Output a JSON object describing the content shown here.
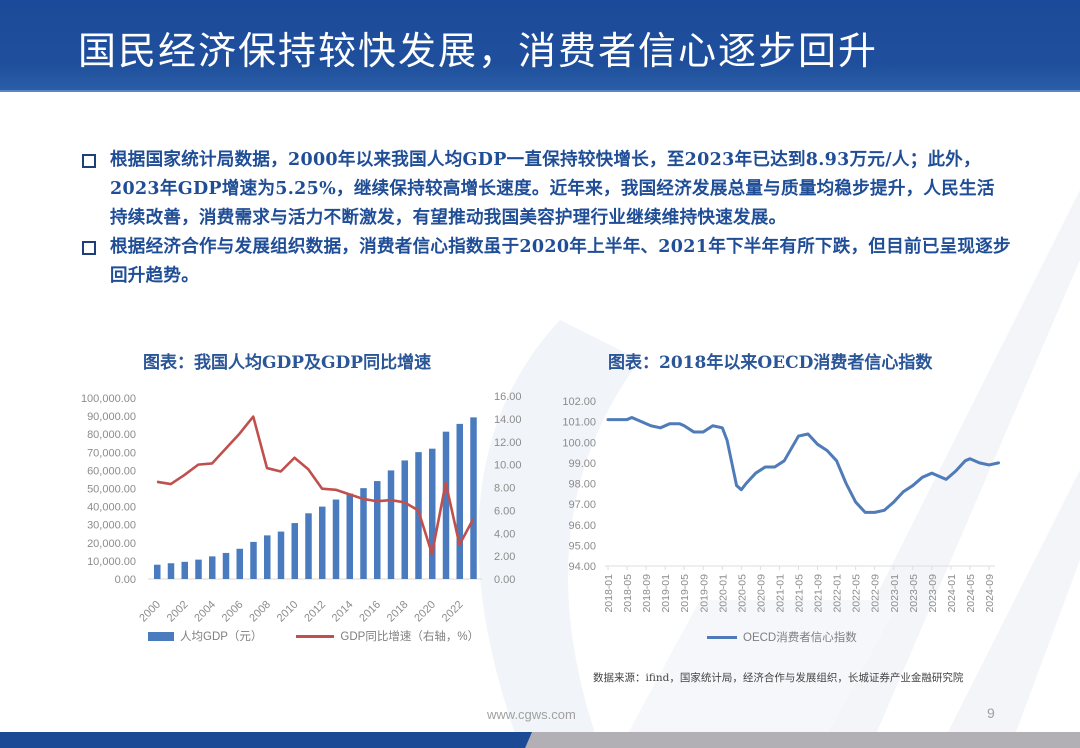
{
  "header": {
    "title": "国民经济保持较快发展，消费者信心逐步回升",
    "color": "#1f4f9c"
  },
  "bullets": [
    {
      "icon": "square-bullet-icon",
      "text": "根据国家统计局数据，2000年以来我国人均GDP一直保持较快增长，至2023年已达到8.93万元/人；此外，2023年GDP增速为5.25%，继续保持较高增长速度。近年来，我国经济发展总量与质量均稳步提升，人民生活持续改善，消费需求与活力不断激发，有望推动我国美容护理行业继续维持快速发展。"
    },
    {
      "icon": "square-bullet-icon",
      "text": "根据经济合作与发展组织数据，消费者信心指数虽于2020年上半年、2021年下半年有所下跌，但目前已呈现逐步回升趋势。"
    }
  ],
  "chart_data": [
    {
      "type": "bar+line",
      "title": "图表：我国人均GDP及GDP同比增速",
      "categories": [
        "2000",
        "2001",
        "2002",
        "2003",
        "2004",
        "2005",
        "2006",
        "2007",
        "2008",
        "2009",
        "2010",
        "2011",
        "2012",
        "2013",
        "2014",
        "2015",
        "2016",
        "2017",
        "2018",
        "2019",
        "2020",
        "2021",
        "2022",
        "2023"
      ],
      "x_tick_labels": [
        "2000",
        "2002",
        "2004",
        "2006",
        "2008",
        "2010",
        "2012",
        "2014",
        "2016",
        "2018",
        "2020",
        "2022"
      ],
      "series": [
        {
          "name": "人均GDP（元）",
          "type": "bar",
          "axis": "left",
          "color": "#4a7bbf",
          "values": [
            7900,
            8700,
            9500,
            10700,
            12500,
            14400,
            16700,
            20500,
            24100,
            26200,
            30900,
            36300,
            40000,
            43900,
            47200,
            50200,
            54100,
            60000,
            65500,
            70100,
            72000,
            81400,
            85700,
            89300
          ]
        },
        {
          "name": "GDP同比增速（右轴，%）",
          "type": "line",
          "axis": "right",
          "color": "#c0504d",
          "values": [
            8.5,
            8.3,
            9.1,
            10.0,
            10.1,
            11.4,
            12.7,
            14.2,
            9.7,
            9.4,
            10.6,
            9.6,
            7.9,
            7.8,
            7.4,
            7.0,
            6.8,
            6.9,
            6.7,
            6.0,
            2.2,
            8.4,
            3.0,
            5.25
          ]
        }
      ],
      "y_left": {
        "ticks": [
          "100,000.00",
          "90,000.00",
          "80,000.00",
          "70,000.00",
          "60,000.00",
          "50,000.00",
          "40,000.00",
          "30,000.00",
          "20,000.00",
          "10,000.00",
          "0.00"
        ],
        "ylim": [
          0,
          100000
        ]
      },
      "y_right": {
        "ticks": [
          "16.00",
          "14.00",
          "12.00",
          "10.00",
          "8.00",
          "6.00",
          "4.00",
          "2.00",
          "0.00"
        ],
        "ylim": [
          0,
          16
        ]
      },
      "legend_position": "bottom"
    },
    {
      "type": "line",
      "title": "图表：2018年以来OECD消费者信心指数",
      "x_tick_labels": [
        "2018-01",
        "2018-05",
        "2018-09",
        "2019-01",
        "2019-05",
        "2019-09",
        "2020-01",
        "2020-05",
        "2020-09",
        "2021-01",
        "2021-05",
        "2021-09",
        "2022-01",
        "2022-05",
        "2022-09",
        "2023-01",
        "2023-05",
        "2023-09",
        "2024-01",
        "2024-05",
        "2024-09"
      ],
      "series": [
        {
          "name": "OECD消费者信心指数",
          "color": "#4f7bb8",
          "points": [
            [
              "2018-01",
              101.1
            ],
            [
              "2018-03",
              101.1
            ],
            [
              "2018-05",
              101.1
            ],
            [
              "2018-06",
              101.2
            ],
            [
              "2018-08",
              101.0
            ],
            [
              "2018-10",
              100.8
            ],
            [
              "2018-12",
              100.7
            ],
            [
              "2019-02",
              100.9
            ],
            [
              "2019-04",
              100.9
            ],
            [
              "2019-05",
              100.8
            ],
            [
              "2019-07",
              100.5
            ],
            [
              "2019-09",
              100.5
            ],
            [
              "2019-11",
              100.8
            ],
            [
              "2020-01",
              100.7
            ],
            [
              "2020-02",
              100.1
            ],
            [
              "2020-03",
              99.0
            ],
            [
              "2020-04",
              97.9
            ],
            [
              "2020-05",
              97.7
            ],
            [
              "2020-06",
              98.0
            ],
            [
              "2020-08",
              98.5
            ],
            [
              "2020-10",
              98.8
            ],
            [
              "2020-12",
              98.8
            ],
            [
              "2021-02",
              99.1
            ],
            [
              "2021-03",
              99.5
            ],
            [
              "2021-05",
              100.3
            ],
            [
              "2021-07",
              100.4
            ],
            [
              "2021-09",
              99.9
            ],
            [
              "2021-11",
              99.6
            ],
            [
              "2022-01",
              99.1
            ],
            [
              "2022-03",
              98.0
            ],
            [
              "2022-05",
              97.1
            ],
            [
              "2022-07",
              96.6
            ],
            [
              "2022-09",
              96.6
            ],
            [
              "2022-11",
              96.7
            ],
            [
              "2023-01",
              97.1
            ],
            [
              "2023-03",
              97.6
            ],
            [
              "2023-05",
              97.9
            ],
            [
              "2023-07",
              98.3
            ],
            [
              "2023-09",
              98.5
            ],
            [
              "2023-12",
              98.2
            ],
            [
              "2024-02",
              98.6
            ],
            [
              "2024-04",
              99.1
            ],
            [
              "2024-05",
              99.2
            ],
            [
              "2024-07",
              99.0
            ],
            [
              "2024-09",
              98.9
            ],
            [
              "2024-11",
              99.0
            ]
          ]
        }
      ],
      "y": {
        "ticks": [
          "102.00",
          "101.00",
          "100.00",
          "99.00",
          "98.00",
          "97.00",
          "96.00",
          "95.00",
          "94.00"
        ],
        "ylim": [
          94,
          102
        ]
      },
      "legend_position": "bottom"
    }
  ],
  "charts": {
    "left": {
      "title": "图表：我国人均GDP及GDP同比增速",
      "legend_bar": "人均GDP（元）",
      "legend_line": "GDP同比增速（右轴，%）"
    },
    "right": {
      "title": "图表：2018年以来OECD消费者信心指数",
      "legend_line": "OECD消费者信心指数"
    }
  },
  "source": "数据来源：ifind，国家统计局，经济合作与发展组织，长城证券产业金融研究院",
  "footer": {
    "url": "www.cgws.com",
    "page": "9"
  },
  "colors": {
    "brand_blue": "#1f4f9c",
    "bar_blue": "#4a7bbf",
    "line_red": "#c0504d",
    "line_blue": "#4f7bb8",
    "footer_gray": "#b3b0b5"
  }
}
